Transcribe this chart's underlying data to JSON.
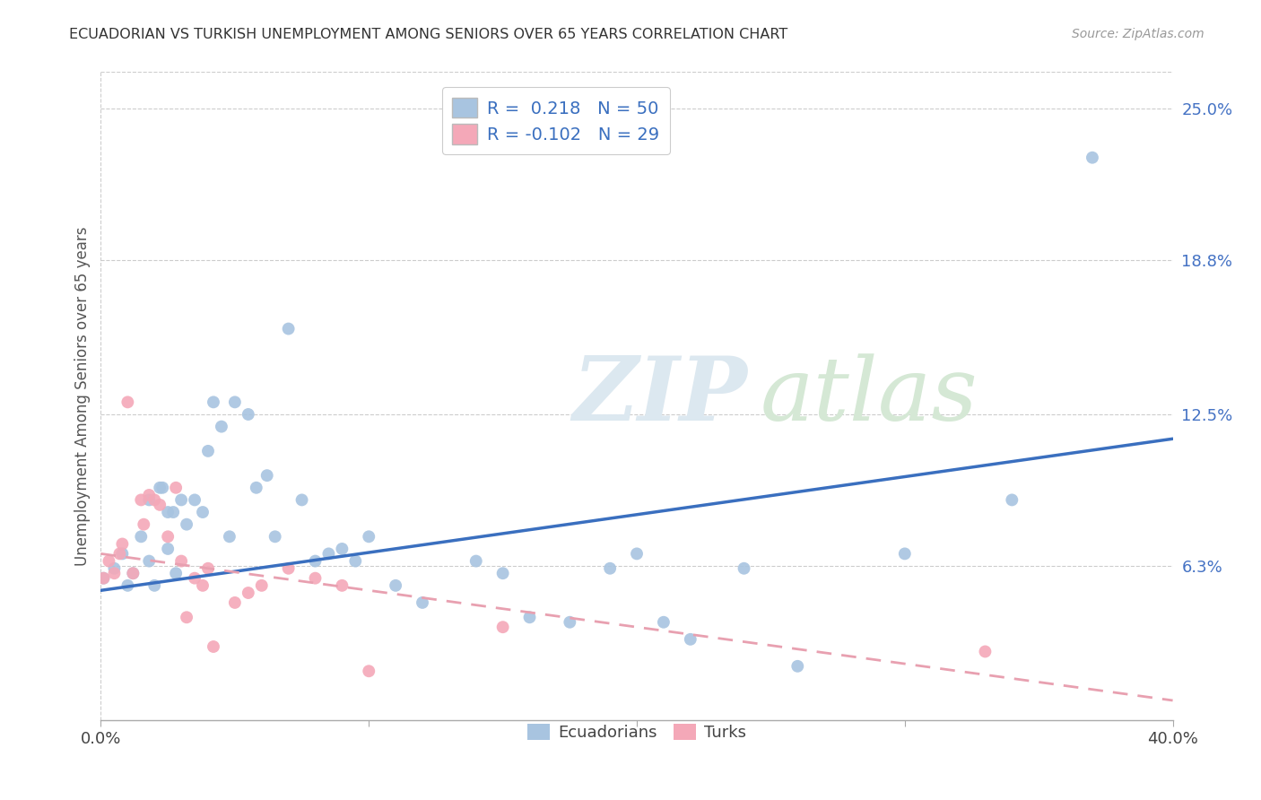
{
  "title": "ECUADORIAN VS TURKISH UNEMPLOYMENT AMONG SENIORS OVER 65 YEARS CORRELATION CHART",
  "source": "Source: ZipAtlas.com",
  "ylabel": "Unemployment Among Seniors over 65 years",
  "xlim": [
    0.0,
    0.4
  ],
  "ylim": [
    0.0,
    0.265
  ],
  "ytick_labels_right": [
    "6.3%",
    "12.5%",
    "18.8%",
    "25.0%"
  ],
  "ytick_vals_right": [
    0.063,
    0.125,
    0.188,
    0.25
  ],
  "r_ecu": 0.218,
  "n_ecu": 50,
  "r_turk": -0.102,
  "n_turk": 29,
  "ecu_color": "#a8c4e0",
  "turk_color": "#f4a8b8",
  "line_ecu_color": "#3a6fbf",
  "line_turk_color": "#e8a0b0",
  "marker_size": 100,
  "legend_labels": [
    "Ecuadorians",
    "Turks"
  ],
  "ecu_x": [
    0.001,
    0.005,
    0.008,
    0.01,
    0.012,
    0.015,
    0.018,
    0.018,
    0.02,
    0.022,
    0.023,
    0.025,
    0.025,
    0.027,
    0.028,
    0.03,
    0.032,
    0.035,
    0.038,
    0.04,
    0.042,
    0.045,
    0.048,
    0.05,
    0.055,
    0.058,
    0.062,
    0.065,
    0.07,
    0.075,
    0.08,
    0.085,
    0.09,
    0.095,
    0.1,
    0.11,
    0.12,
    0.14,
    0.15,
    0.16,
    0.175,
    0.19,
    0.2,
    0.21,
    0.22,
    0.24,
    0.26,
    0.3,
    0.34,
    0.37
  ],
  "ecu_y": [
    0.058,
    0.062,
    0.068,
    0.055,
    0.06,
    0.075,
    0.09,
    0.065,
    0.055,
    0.095,
    0.095,
    0.085,
    0.07,
    0.085,
    0.06,
    0.09,
    0.08,
    0.09,
    0.085,
    0.11,
    0.13,
    0.12,
    0.075,
    0.13,
    0.125,
    0.095,
    0.1,
    0.075,
    0.16,
    0.09,
    0.065,
    0.068,
    0.07,
    0.065,
    0.075,
    0.055,
    0.048,
    0.065,
    0.06,
    0.042,
    0.04,
    0.062,
    0.068,
    0.04,
    0.033,
    0.062,
    0.022,
    0.068,
    0.09,
    0.23
  ],
  "turk_x": [
    0.001,
    0.003,
    0.005,
    0.007,
    0.008,
    0.01,
    0.012,
    0.015,
    0.016,
    0.018,
    0.02,
    0.022,
    0.025,
    0.028,
    0.03,
    0.032,
    0.035,
    0.038,
    0.04,
    0.042,
    0.05,
    0.055,
    0.06,
    0.07,
    0.08,
    0.09,
    0.1,
    0.15,
    0.33
  ],
  "turk_y": [
    0.058,
    0.065,
    0.06,
    0.068,
    0.072,
    0.13,
    0.06,
    0.09,
    0.08,
    0.092,
    0.09,
    0.088,
    0.075,
    0.095,
    0.065,
    0.042,
    0.058,
    0.055,
    0.062,
    0.03,
    0.048,
    0.052,
    0.055,
    0.062,
    0.058,
    0.055,
    0.02,
    0.038,
    0.028
  ]
}
